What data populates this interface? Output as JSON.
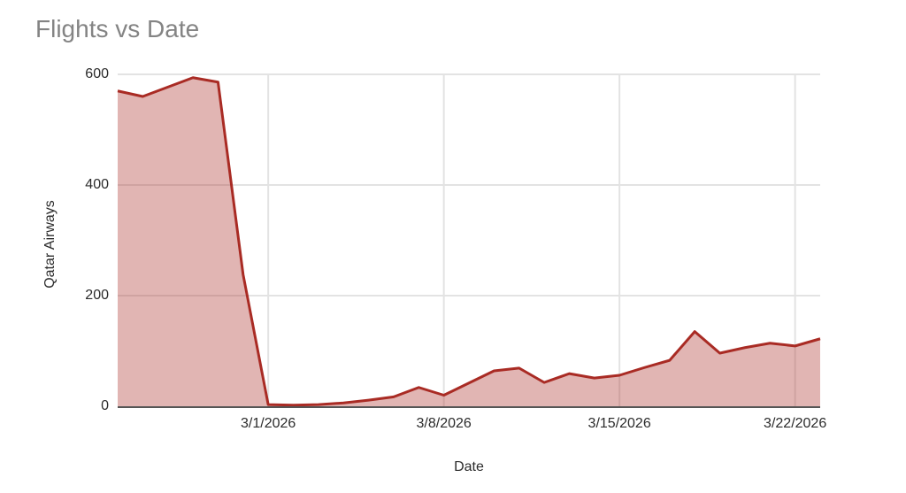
{
  "chart_data": {
    "type": "area",
    "title": "Flights vs Date",
    "xlabel": "Date",
    "ylabel": "Qatar Airways",
    "series_name": "Qatar Airways",
    "x": [
      "2/23/2026",
      "2/24/2026",
      "2/25/2026",
      "2/26/2026",
      "2/27/2026",
      "2/28/2026",
      "3/1/2026",
      "3/2/2026",
      "3/3/2026",
      "3/4/2026",
      "3/5/2026",
      "3/6/2026",
      "3/7/2026",
      "3/8/2026",
      "3/9/2026",
      "3/10/2026",
      "3/11/2026",
      "3/12/2026",
      "3/13/2026",
      "3/14/2026",
      "3/15/2026",
      "3/16/2026",
      "3/17/2026",
      "3/18/2026",
      "3/19/2026",
      "3/20/2026",
      "3/21/2026",
      "3/22/2026",
      "3/23/2026"
    ],
    "values": [
      570,
      560,
      577,
      594,
      586,
      238,
      3,
      2,
      3,
      6,
      11,
      17,
      34,
      20,
      42,
      64,
      69,
      43,
      59,
      51,
      56,
      70,
      83,
      135,
      96,
      106,
      114,
      109,
      122
    ],
    "x_ticks": [
      "3/1/2026",
      "3/8/2026",
      "3/15/2026",
      "3/22/2026"
    ],
    "y_ticks": [
      0,
      200,
      400,
      600
    ],
    "ylim": [
      0,
      600
    ],
    "grid": "on",
    "legend": "none",
    "colors": {
      "line": "#a92b24",
      "fill": "rgba(169,43,36,0.35)",
      "gridline": "#e3e3e3",
      "axis": "#555555",
      "title_text": "#848484",
      "tick_text": "#2b2b2b"
    }
  }
}
